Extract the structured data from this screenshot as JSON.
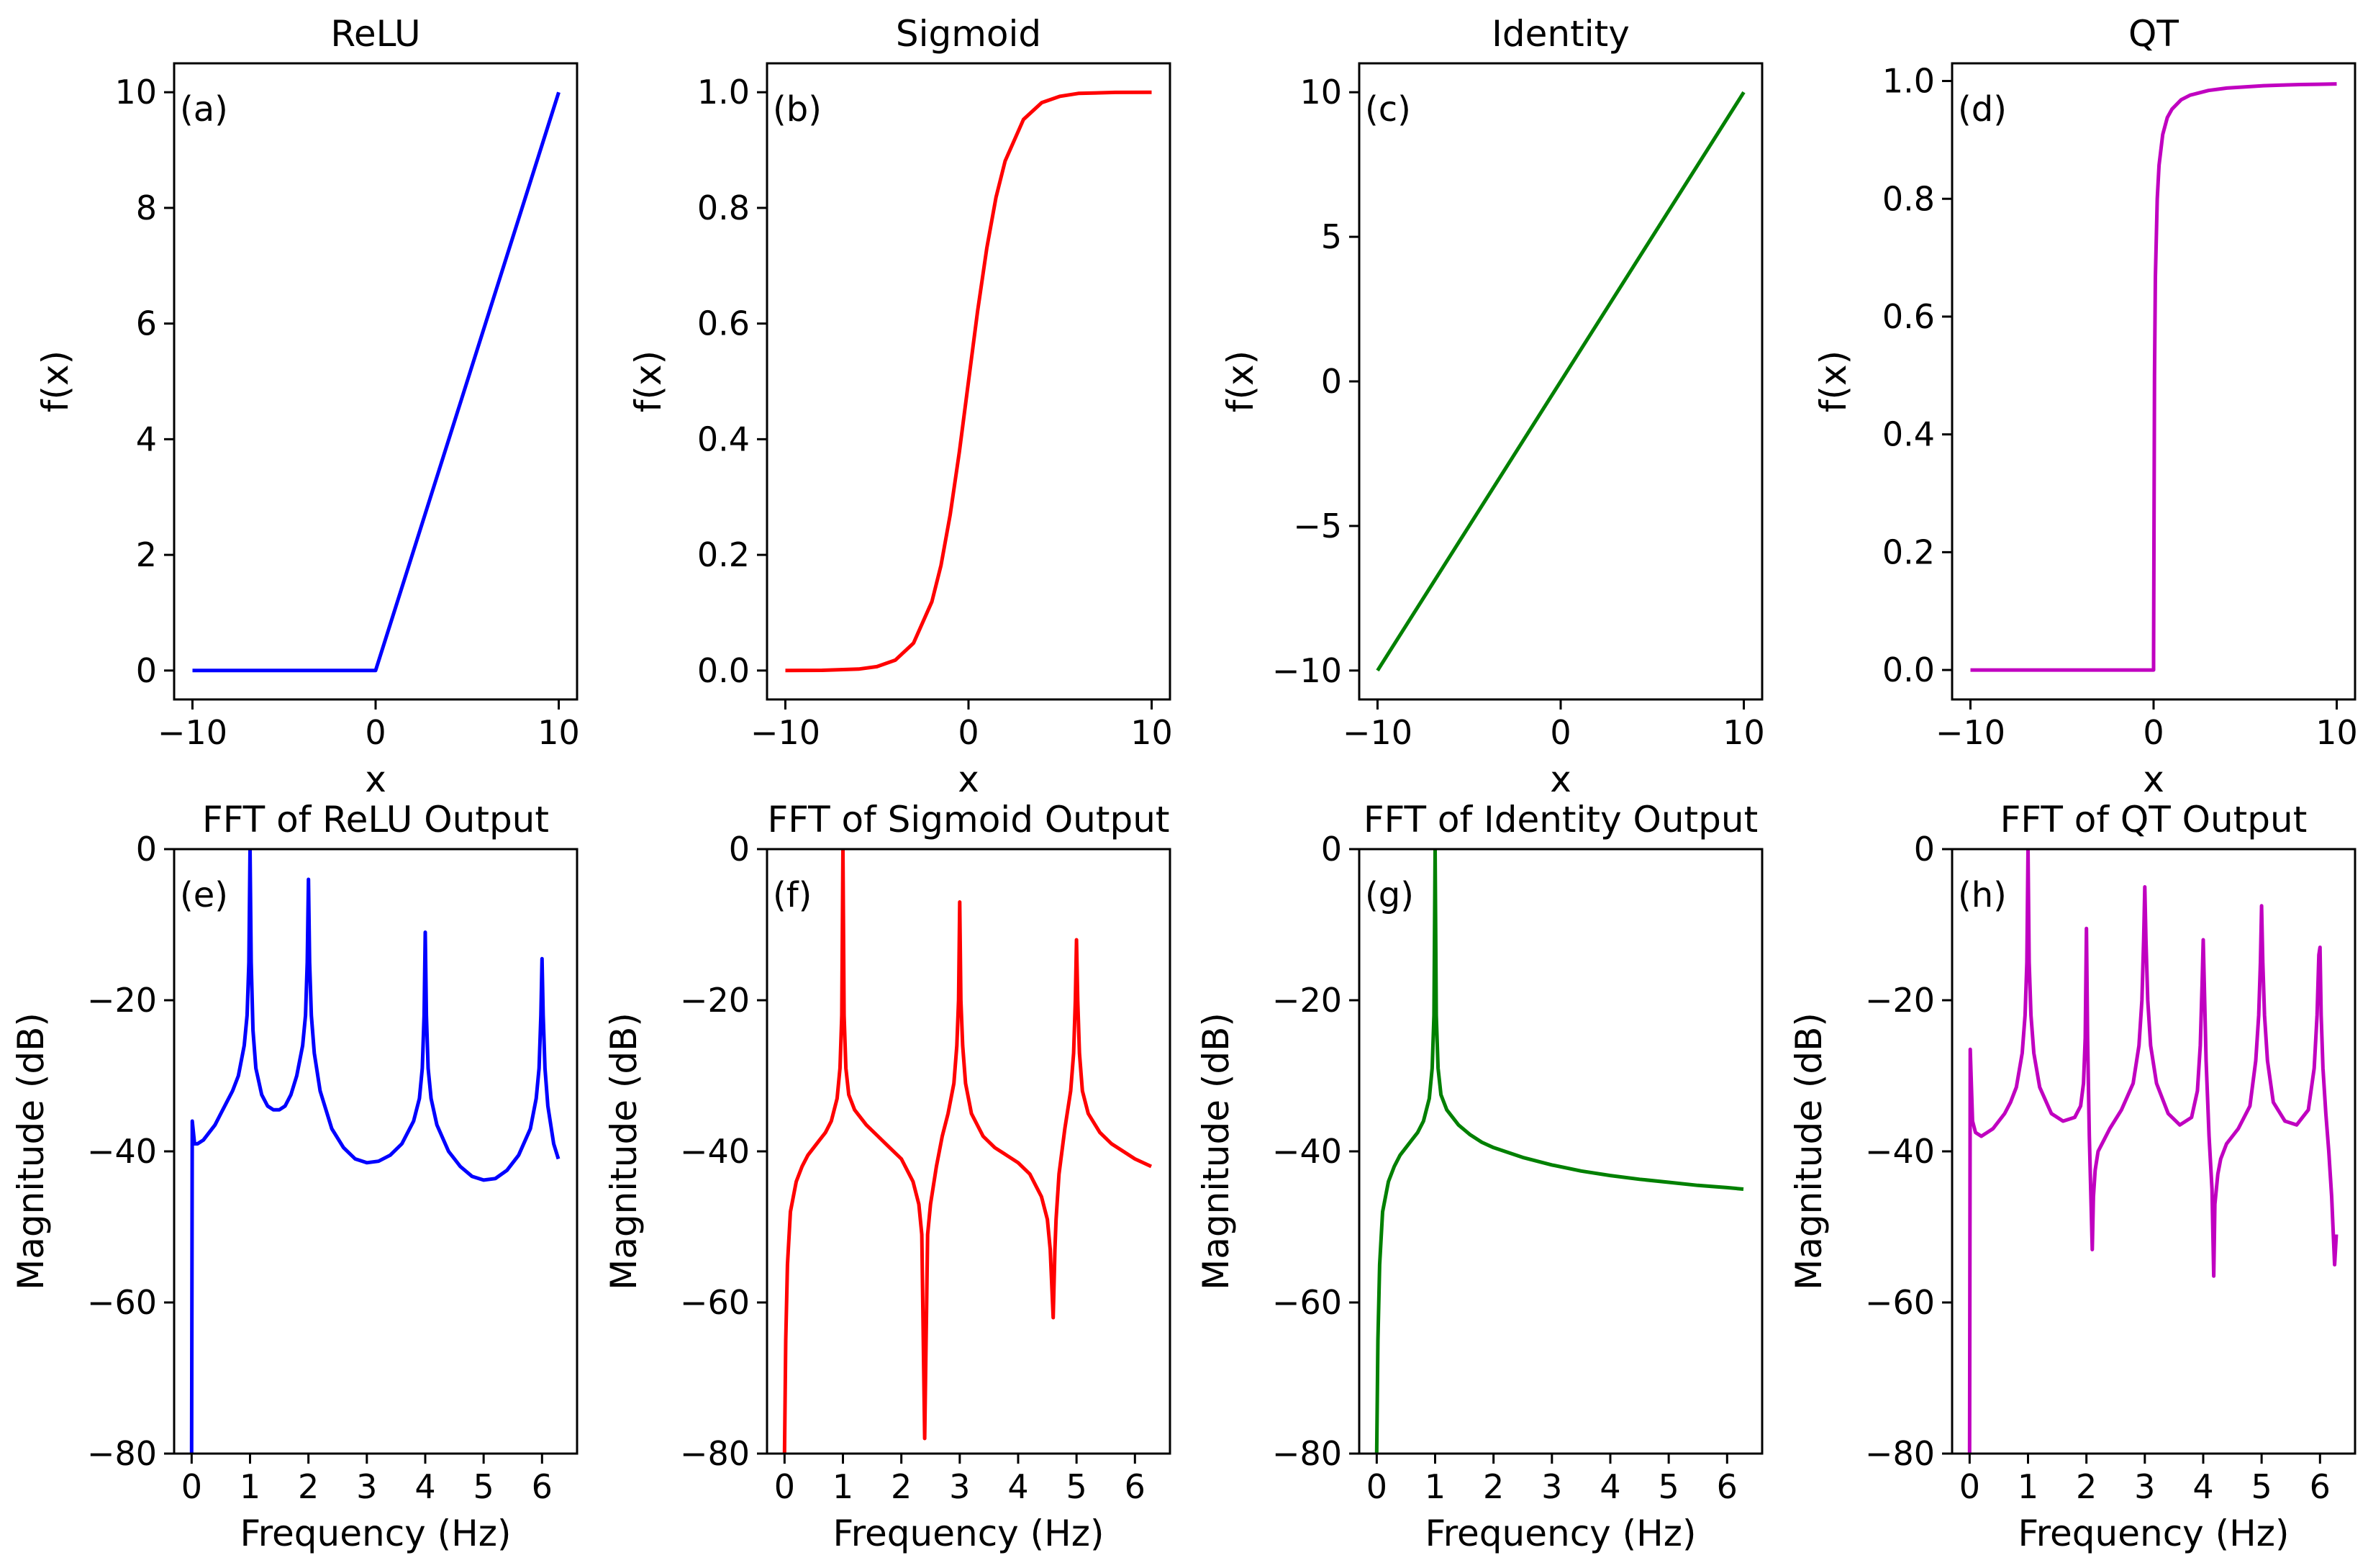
{
  "chart_data": [
    {
      "type": "line",
      "panel": "(a)",
      "title": "ReLU",
      "xlabel": "x",
      "ylabel": "f(x)",
      "xlim": [
        -11,
        11
      ],
      "ylim": [
        -0.5,
        10.5
      ],
      "xticks": [
        -10,
        0,
        10
      ],
      "xtick_labels": [
        "−10",
        "0",
        "10"
      ],
      "yticks": [
        0,
        2,
        4,
        6,
        8,
        10
      ],
      "ytick_labels": [
        "0",
        "2",
        "4",
        "6",
        "8",
        "10"
      ],
      "color": "#0000ff",
      "x": [
        -10,
        0,
        10
      ],
      "y": [
        0,
        0,
        10
      ]
    },
    {
      "type": "line",
      "panel": "(b)",
      "title": "Sigmoid",
      "xlabel": "x",
      "ylabel": "f(x)",
      "xlim": [
        -11,
        11
      ],
      "ylim": [
        -0.05,
        1.05
      ],
      "xticks": [
        -10,
        0,
        10
      ],
      "xtick_labels": [
        "−10",
        "0",
        "10"
      ],
      "yticks": [
        0,
        0.2,
        0.4,
        0.6,
        0.8,
        1.0
      ],
      "ytick_labels": [
        "0.0",
        "0.2",
        "0.4",
        "0.6",
        "0.8",
        "1.0"
      ],
      "color": "#ff0000",
      "x": [
        -10,
        -8,
        -6,
        -5,
        -4,
        -3,
        -2,
        -1.5,
        -1,
        -0.5,
        0,
        0.5,
        1,
        1.5,
        2,
        3,
        4,
        5,
        6,
        8,
        10
      ],
      "y": [
        4.54e-05,
        0.000335,
        0.00247,
        0.00669,
        0.018,
        0.0474,
        0.119,
        0.182,
        0.269,
        0.378,
        0.5,
        0.622,
        0.731,
        0.818,
        0.881,
        0.953,
        0.982,
        0.993,
        0.998,
        0.9997,
        0.99995
      ]
    },
    {
      "type": "line",
      "panel": "(c)",
      "title": "Identity",
      "xlabel": "x",
      "ylabel": "f(x)",
      "xlim": [
        -11,
        11
      ],
      "ylim": [
        -11,
        11
      ],
      "xticks": [
        -10,
        0,
        10
      ],
      "xtick_labels": [
        "−10",
        "0",
        "10"
      ],
      "yticks": [
        -10,
        -5,
        0,
        5,
        10
      ],
      "ytick_labels": [
        "−10",
        "−5",
        "0",
        "5",
        "10"
      ],
      "color": "#008000",
      "x": [
        -10,
        10
      ],
      "y": [
        -10,
        10
      ]
    },
    {
      "type": "line",
      "panel": "(d)",
      "title": "QT",
      "xlabel": "x",
      "ylabel": "f(x)",
      "xlim": [
        -11,
        11
      ],
      "ylim": [
        -0.05,
        1.03
      ],
      "xticks": [
        -10,
        0,
        10
      ],
      "xtick_labels": [
        "−10",
        "0",
        "10"
      ],
      "yticks": [
        0,
        0.2,
        0.4,
        0.6,
        0.8,
        1.0
      ],
      "ytick_labels": [
        "0.0",
        "0.2",
        "0.4",
        "0.6",
        "0.8",
        "1.0"
      ],
      "color": "#c000c0",
      "x": [
        -10,
        0,
        0.001,
        0.05,
        0.1,
        0.2,
        0.3,
        0.5,
        0.75,
        1,
        1.5,
        2,
        3,
        4,
        5,
        6,
        7,
        8,
        9,
        10
      ],
      "y": [
        0,
        0,
        0.02,
        0.5,
        0.667,
        0.8,
        0.857,
        0.909,
        0.938,
        0.952,
        0.968,
        0.976,
        0.984,
        0.988,
        0.99,
        0.992,
        0.993,
        0.994,
        0.9945,
        0.995
      ]
    },
    {
      "type": "line",
      "panel": "(e)",
      "title": "FFT of ReLU Output",
      "xlabel": "Frequency (Hz)",
      "ylabel": "Magnitude (dB)",
      "xlim": [
        -0.3,
        6.6
      ],
      "ylim": [
        -80,
        0
      ],
      "xticks": [
        0,
        1,
        2,
        3,
        4,
        5,
        6
      ],
      "xtick_labels": [
        "0",
        "1",
        "2",
        "3",
        "4",
        "5",
        "6"
      ],
      "yticks": [
        -80,
        -60,
        -40,
        -20,
        0
      ],
      "ytick_labels": [
        "−80",
        "−60",
        "−40",
        "−20",
        "0"
      ],
      "color": "#0000ff",
      "x": [
        0,
        0.01,
        0.05,
        0.1,
        0.2,
        0.3,
        0.4,
        0.5,
        0.6,
        0.7,
        0.8,
        0.9,
        0.95,
        0.98,
        1.0,
        1.02,
        1.05,
        1.1,
        1.2,
        1.3,
        1.4,
        1.5,
        1.6,
        1.7,
        1.8,
        1.9,
        1.95,
        1.98,
        2.0,
        2.02,
        2.05,
        2.1,
        2.2,
        2.4,
        2.6,
        2.8,
        3.0,
        3.2,
        3.4,
        3.6,
        3.8,
        3.9,
        3.95,
        3.98,
        4.0,
        4.02,
        4.05,
        4.1,
        4.2,
        4.4,
        4.6,
        4.8,
        5.0,
        5.2,
        5.4,
        5.6,
        5.8,
        5.9,
        5.95,
        5.98,
        6.0,
        6.02,
        6.05,
        6.1,
        6.2,
        6.28
      ],
      "y": [
        -80,
        -36,
        -39,
        -39,
        -38.5,
        -37.5,
        -36.5,
        -35,
        -33.5,
        -32,
        -30,
        -26,
        -22,
        -15,
        0,
        -15,
        -24,
        -29,
        -32.5,
        -34,
        -34.5,
        -34.5,
        -34,
        -32.5,
        -30,
        -26,
        -22,
        -15,
        -4,
        -15,
        -22,
        -27,
        -32,
        -37,
        -39.5,
        -41,
        -41.5,
        -41.3,
        -40.5,
        -39,
        -36,
        -33,
        -29,
        -22,
        -11,
        -22,
        -29,
        -33,
        -36.5,
        -40,
        -42,
        -43.3,
        -43.8,
        -43.6,
        -42.5,
        -40.5,
        -37,
        -33,
        -29,
        -22,
        -14.5,
        -22,
        -29,
        -34,
        -39,
        -41
      ]
    },
    {
      "type": "line",
      "panel": "(f)",
      "title": "FFT of Sigmoid Output",
      "xlabel": "Frequency (Hz)",
      "ylabel": "Magnitude (dB)",
      "xlim": [
        -0.3,
        6.6
      ],
      "ylim": [
        -80,
        0
      ],
      "xticks": [
        0,
        1,
        2,
        3,
        4,
        5,
        6
      ],
      "xtick_labels": [
        "0",
        "1",
        "2",
        "3",
        "4",
        "5",
        "6"
      ],
      "yticks": [
        -80,
        -60,
        -40,
        -20,
        0
      ],
      "ytick_labels": [
        "−80",
        "−60",
        "−40",
        "−20",
        "0"
      ],
      "color": "#ff0000",
      "x": [
        0,
        0.02,
        0.05,
        0.1,
        0.2,
        0.3,
        0.4,
        0.5,
        0.6,
        0.7,
        0.8,
        0.9,
        0.95,
        0.98,
        1.0,
        1.02,
        1.05,
        1.1,
        1.2,
        1.4,
        1.6,
        1.8,
        2.0,
        2.2,
        2.3,
        2.35,
        2.4,
        2.45,
        2.5,
        2.6,
        2.7,
        2.8,
        2.9,
        2.95,
        2.98,
        3.0,
        3.02,
        3.05,
        3.1,
        3.2,
        3.4,
        3.6,
        3.8,
        4.0,
        4.2,
        4.4,
        4.5,
        4.55,
        4.6,
        4.63,
        4.65,
        4.7,
        4.8,
        4.9,
        4.95,
        4.98,
        5.0,
        5.02,
        5.05,
        5.1,
        5.2,
        5.4,
        5.6,
        5.8,
        6.0,
        6.28
      ],
      "y": [
        -80,
        -65,
        -55,
        -48,
        -44,
        -42,
        -40.5,
        -39.5,
        -38.5,
        -37.5,
        -36,
        -33,
        -29,
        -22,
        0,
        -22,
        -29,
        -32.5,
        -34.5,
        -36.5,
        -38,
        -39.5,
        -41,
        -44,
        -47,
        -51,
        -78,
        -51,
        -47,
        -42,
        -38,
        -35,
        -31,
        -26,
        -20,
        -7,
        -20,
        -26,
        -31,
        -35,
        -38,
        -39.5,
        -40.5,
        -41.5,
        -43,
        -46,
        -49,
        -53,
        -62,
        -53,
        -49,
        -43,
        -37,
        -32,
        -27,
        -20,
        -12,
        -20,
        -27,
        -32,
        -35,
        -37.5,
        -39,
        -40,
        -41,
        -42
      ]
    },
    {
      "type": "line",
      "panel": "(g)",
      "title": "FFT of Identity Output",
      "xlabel": "Frequency (Hz)",
      "ylabel": "Magnitude (dB)",
      "xlim": [
        -0.3,
        6.6
      ],
      "ylim": [
        -80,
        0
      ],
      "xticks": [
        0,
        1,
        2,
        3,
        4,
        5,
        6
      ],
      "xtick_labels": [
        "0",
        "1",
        "2",
        "3",
        "4",
        "5",
        "6"
      ],
      "yticks": [
        -80,
        -60,
        -40,
        -20,
        0
      ],
      "ytick_labels": [
        "−80",
        "−60",
        "−40",
        "−20",
        "0"
      ],
      "color": "#008000",
      "x": [
        0,
        0.02,
        0.05,
        0.1,
        0.2,
        0.3,
        0.4,
        0.5,
        0.6,
        0.7,
        0.8,
        0.9,
        0.95,
        0.98,
        1.0,
        1.02,
        1.05,
        1.1,
        1.2,
        1.4,
        1.6,
        1.8,
        2.0,
        2.5,
        3.0,
        3.5,
        4.0,
        4.5,
        5.0,
        5.5,
        6.0,
        6.28
      ],
      "y": [
        -80,
        -65,
        -55,
        -48,
        -44,
        -42,
        -40.5,
        -39.5,
        -38.5,
        -37.5,
        -36,
        -33,
        -29,
        -22,
        0,
        -22,
        -29,
        -32.5,
        -34.5,
        -36.5,
        -37.8,
        -38.8,
        -39.5,
        -40.8,
        -41.8,
        -42.6,
        -43.2,
        -43.7,
        -44.1,
        -44.5,
        -44.8,
        -45
      ]
    },
    {
      "type": "line",
      "panel": "(h)",
      "title": "FFT of QT Output",
      "xlabel": "Frequency (Hz)",
      "ylabel": "Magnitude (dB)",
      "xlim": [
        -0.3,
        6.6
      ],
      "ylim": [
        -80,
        0
      ],
      "xticks": [
        0,
        1,
        2,
        3,
        4,
        5,
        6
      ],
      "xtick_labels": [
        "0",
        "1",
        "2",
        "3",
        "4",
        "5",
        "6"
      ],
      "yticks": [
        -80,
        -60,
        -40,
        -20,
        0
      ],
      "ytick_labels": [
        "−80",
        "−60",
        "−40",
        "−20",
        "0"
      ],
      "color": "#c000c0",
      "x": [
        0,
        0.01,
        0.05,
        0.1,
        0.2,
        0.3,
        0.4,
        0.5,
        0.6,
        0.7,
        0.8,
        0.9,
        0.95,
        0.98,
        1.0,
        1.02,
        1.05,
        1.1,
        1.2,
        1.4,
        1.6,
        1.8,
        1.9,
        1.95,
        1.98,
        2.0,
        2.02,
        2.05,
        2.1,
        2.12,
        2.15,
        2.2,
        2.3,
        2.4,
        2.6,
        2.8,
        2.9,
        2.95,
        2.98,
        3.0,
        3.02,
        3.05,
        3.1,
        3.2,
        3.4,
        3.6,
        3.8,
        3.9,
        3.95,
        3.98,
        4.0,
        4.05,
        4.1,
        4.15,
        4.18,
        4.2,
        4.25,
        4.3,
        4.4,
        4.6,
        4.8,
        4.9,
        4.95,
        4.98,
        5.0,
        5.02,
        5.05,
        5.1,
        5.2,
        5.4,
        5.6,
        5.8,
        5.9,
        5.95,
        5.98,
        6.0,
        6.02,
        6.05,
        6.1,
        6.15,
        6.2,
        6.25,
        6.28
      ],
      "y": [
        -80,
        -26.5,
        -36,
        -37.5,
        -38,
        -37.5,
        -37,
        -36,
        -35,
        -33.5,
        -31.5,
        -27,
        -22,
        -15,
        0,
        -15,
        -22,
        -27,
        -31.5,
        -35,
        -36,
        -35.5,
        -34,
        -31,
        -25,
        -10.5,
        -25,
        -38,
        -53,
        -46,
        -42.5,
        -40,
        -38.5,
        -37,
        -34.5,
        -31,
        -26,
        -20,
        -12,
        -5,
        -12,
        -20,
        -26,
        -31,
        -35,
        -36.5,
        -35.5,
        -32,
        -26,
        -18,
        -12,
        -28,
        -38,
        -45,
        -56.5,
        -47,
        -43,
        -41,
        -39,
        -37,
        -34,
        -28,
        -22,
        -15,
        -7.5,
        -15,
        -22,
        -28,
        -33.5,
        -36,
        -36.5,
        -34.5,
        -29,
        -22,
        -14,
        -13,
        -22,
        -29,
        -35,
        -40,
        -46,
        -55,
        -51
      ]
    }
  ]
}
